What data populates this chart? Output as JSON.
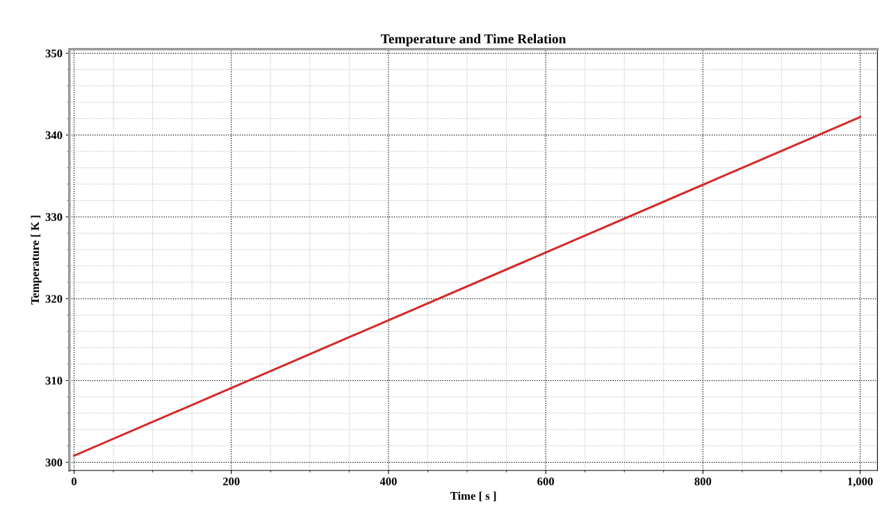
{
  "chart_data": {
    "type": "line",
    "title": "Temperature and Time Relation",
    "xlabel": "Time [ s ]",
    "ylabel": "Temperature [ K ]",
    "series": [
      {
        "color": "#d42a2a",
        "x": [
          0,
          1000
        ],
        "values": [
          300.8,
          342.2
        ]
      }
    ],
    "xlim": [
      -6,
      1022
    ],
    "ylim": [
      299,
      350.5
    ],
    "xticks": [
      0,
      200,
      400,
      600,
      800,
      {
        "value": 1000,
        "label": "1,000"
      }
    ],
    "yticks": [
      300,
      310,
      320,
      330,
      340,
      350
    ],
    "grid": true,
    "marker": "none",
    "line_style": "solid"
  }
}
